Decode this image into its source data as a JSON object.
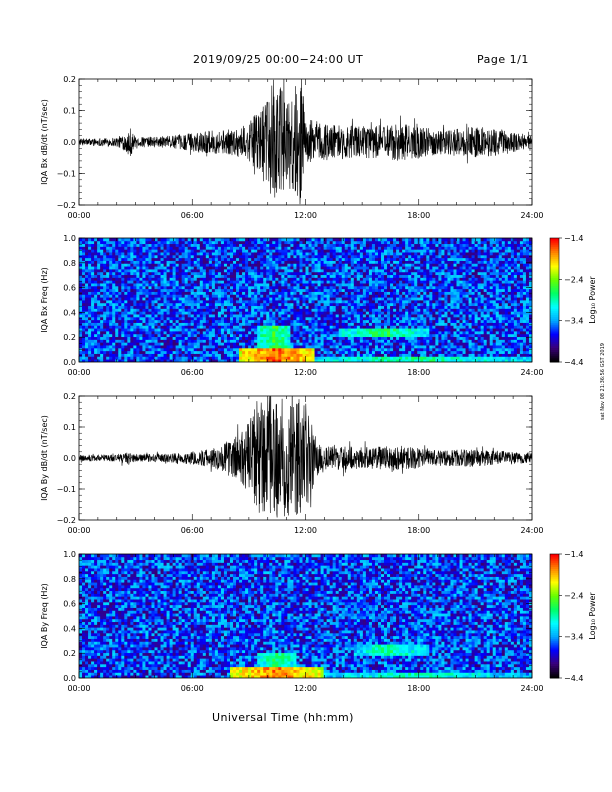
{
  "header": {
    "title": "2019/09/25  00:00−24:00 UT",
    "page": "Page 1/1"
  },
  "footer": {
    "xlabel": "Universal Time (hh:mm)",
    "stamp": "sat Nov 08 21:36:56 GST 2019"
  },
  "colors": {
    "colormap": [
      "#000000",
      "#3a007a",
      "#0000ff",
      "#00aaff",
      "#00ffff",
      "#00ff66",
      "#66ff00",
      "#ffff00",
      "#ff8800",
      "#ff0000"
    ],
    "background": "#2f4cf0"
  },
  "chart_data": [
    {
      "type": "line",
      "ylabel": "IQA Bx dB/dt (nT/sec)",
      "xlim": [
        0,
        24
      ],
      "ylim": [
        -0.2,
        0.2
      ],
      "x_ticks": [
        "00:00",
        "06:00",
        "12:00",
        "18:00",
        "24:00"
      ],
      "y_ticks": [
        "0.2",
        "0.1",
        "0.0",
        "−0.1",
        "−0.2"
      ],
      "y_tick_values": [
        0.2,
        0.1,
        0.0,
        -0.1,
        -0.2
      ],
      "envelope": {
        "hours": [
          0,
          2,
          2.5,
          2.7,
          3,
          5,
          6.5,
          8,
          9,
          9.5,
          10,
          10.3,
          10.6,
          11,
          11.3,
          11.7,
          12,
          13,
          15,
          17,
          19,
          21,
          22.5,
          24
        ],
        "amplitude": [
          0.01,
          0.015,
          0.03,
          0.05,
          0.015,
          0.02,
          0.035,
          0.04,
          0.06,
          0.1,
          0.13,
          0.2,
          0.2,
          0.13,
          0.17,
          0.2,
          0.08,
          0.06,
          0.05,
          0.06,
          0.04,
          0.05,
          0.04,
          0.02
        ]
      }
    },
    {
      "type": "heatmap",
      "ylabel": "IQA Bx Freq (Hz)",
      "xlim": [
        0,
        24
      ],
      "ylim": [
        0,
        1.0
      ],
      "x_ticks": [
        "00:00",
        "06:00",
        "12:00",
        "18:00",
        "24:00"
      ],
      "y_ticks": [
        "1.0",
        "0.8",
        "0.6",
        "0.4",
        "0.2",
        "0.0"
      ],
      "y_tick_values": [
        1.0,
        0.8,
        0.6,
        0.4,
        0.2,
        0.0
      ],
      "colorbar_label": "Log₁₀ Power",
      "colorbar_ticks": [
        "−1.4",
        "−2.4",
        "−3.4",
        "−4.4"
      ],
      "colorbar_range": [
        -4.4,
        -1.4
      ],
      "features": [
        {
          "hours": [
            8.5,
            12.5
          ],
          "freq": [
            0.0,
            0.12
          ],
          "level": -1.6
        },
        {
          "hours": [
            9.5,
            11.2
          ],
          "freq": [
            0.05,
            0.3
          ],
          "level": -2.6
        },
        {
          "hours": [
            13.8,
            18.5
          ],
          "freq": [
            0.2,
            0.28
          ],
          "level": -2.7
        },
        {
          "hours": [
            12.0,
            24.0
          ],
          "freq": [
            0.0,
            0.05
          ],
          "level": -2.8
        }
      ]
    },
    {
      "type": "line",
      "ylabel": "IQA By dB/dt (nT/sec)",
      "xlim": [
        0,
        24
      ],
      "ylim": [
        -0.2,
        0.2
      ],
      "x_ticks": [
        "00:00",
        "06:00",
        "12:00",
        "18:00",
        "24:00"
      ],
      "y_ticks": [
        "0.2",
        "0.1",
        "0.0",
        "−0.1",
        "−0.2"
      ],
      "y_tick_values": [
        0.2,
        0.1,
        0.0,
        -0.1,
        -0.2
      ],
      "envelope": {
        "hours": [
          0,
          2,
          2.5,
          3,
          5,
          6.5,
          7.5,
          8.5,
          9,
          9.5,
          10,
          10.5,
          11,
          11.5,
          12,
          12.5,
          13,
          15,
          17,
          19,
          21,
          23,
          24
        ],
        "amplitude": [
          0.01,
          0.012,
          0.02,
          0.012,
          0.015,
          0.025,
          0.04,
          0.08,
          0.12,
          0.2,
          0.2,
          0.2,
          0.2,
          0.2,
          0.18,
          0.08,
          0.04,
          0.035,
          0.04,
          0.025,
          0.03,
          0.02,
          0.015
        ]
      }
    },
    {
      "type": "heatmap",
      "ylabel": "IQA By Freq (Hz)",
      "xlim": [
        0,
        24
      ],
      "ylim": [
        0,
        1.0
      ],
      "x_ticks": [
        "00:00",
        "06:00",
        "12:00",
        "18:00",
        "24:00"
      ],
      "y_ticks": [
        "1.0",
        "0.8",
        "0.6",
        "0.4",
        "0.2",
        "0.0"
      ],
      "y_tick_values": [
        1.0,
        0.8,
        0.6,
        0.4,
        0.2,
        0.0
      ],
      "colorbar_label": "Log₁₀ Power",
      "colorbar_ticks": [
        "−1.4",
        "−2.4",
        "−3.4",
        "−4.4"
      ],
      "colorbar_range": [
        -4.4,
        -1.4
      ],
      "features": [
        {
          "hours": [
            8.0,
            13.0
          ],
          "freq": [
            0.0,
            0.1
          ],
          "level": -1.7
        },
        {
          "hours": [
            9.5,
            11.5
          ],
          "freq": [
            0.04,
            0.2
          ],
          "level": -2.7
        },
        {
          "hours": [
            14.5,
            18.5
          ],
          "freq": [
            0.18,
            0.28
          ],
          "level": -2.8
        },
        {
          "hours": [
            12.0,
            24.0
          ],
          "freq": [
            0.0,
            0.05
          ],
          "level": -2.9
        }
      ]
    }
  ]
}
